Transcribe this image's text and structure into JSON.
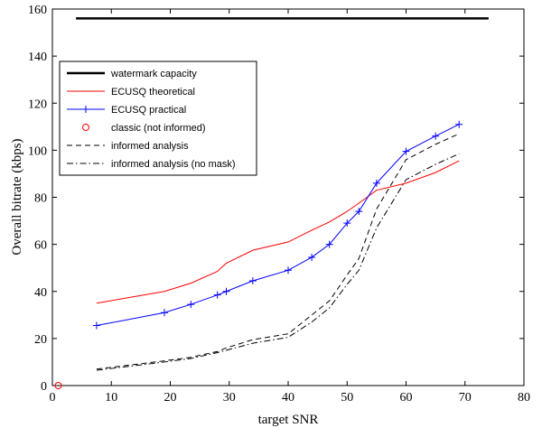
{
  "chart_data": {
    "type": "line",
    "title": "",
    "xlabel": "target SNR",
    "ylabel": "Overall bitrate (kbps)",
    "xlim": [
      0,
      80
    ],
    "ylim": [
      0,
      160
    ],
    "xticks": [
      0,
      10,
      20,
      30,
      40,
      50,
      60,
      70,
      80
    ],
    "yticks": [
      0,
      20,
      40,
      60,
      80,
      100,
      120,
      140,
      160
    ],
    "grid": false,
    "legend_position": "top-left",
    "series": [
      {
        "name": "watermark capacity",
        "color": "#000000",
        "style": "solid-thick",
        "marker": "none",
        "x": [
          4,
          74
        ],
        "y": [
          156,
          156
        ]
      },
      {
        "name": "ECUSQ theoretical",
        "color": "#ff0000",
        "style": "solid",
        "marker": "none",
        "x": [
          7.5,
          19,
          23.5,
          28,
          29.5,
          34,
          40,
          44,
          47,
          50,
          52,
          55,
          60,
          65,
          69
        ],
        "y": [
          35,
          40,
          43.5,
          48.5,
          52,
          57.5,
          61,
          66,
          69.5,
          74,
          77.5,
          83,
          86,
          90.5,
          95.5
        ]
      },
      {
        "name": "ECUSQ practical",
        "color": "#0000ff",
        "style": "solid",
        "marker": "plus",
        "x": [
          7.5,
          19,
          23.5,
          28,
          29.5,
          34,
          40,
          44,
          47,
          50,
          52,
          55,
          60,
          65,
          69
        ],
        "y": [
          25.5,
          31,
          34.5,
          38.5,
          40,
          44.5,
          49,
          54.5,
          60,
          69,
          74,
          86,
          99.5,
          106,
          111
        ]
      },
      {
        "name": "classic (not informed)",
        "color": "#ff0000",
        "style": "none",
        "marker": "circle",
        "x": [
          1
        ],
        "y": [
          0
        ]
      },
      {
        "name": "informed analysis",
        "color": "#000000",
        "style": "dashed",
        "marker": "none",
        "x": [
          7.5,
          19,
          23.5,
          28,
          29.5,
          34,
          40,
          44,
          47,
          50,
          52,
          55,
          60,
          65,
          69
        ],
        "y": [
          7,
          10.5,
          12,
          14.5,
          16,
          19.5,
          22,
          30,
          36,
          47,
          54,
          75,
          96,
          102.5,
          107
        ]
      },
      {
        "name": "informed analysis (no mask)",
        "color": "#000000",
        "style": "dashdot",
        "marker": "none",
        "x": [
          7.5,
          19,
          23.5,
          28,
          29.5,
          34,
          40,
          44,
          47,
          50,
          52,
          55,
          60,
          65,
          69
        ],
        "y": [
          6.5,
          10,
          11.5,
          14,
          15,
          18,
          20.5,
          27,
          33,
          43,
          49,
          67,
          87.5,
          94,
          98.5
        ]
      }
    ]
  }
}
